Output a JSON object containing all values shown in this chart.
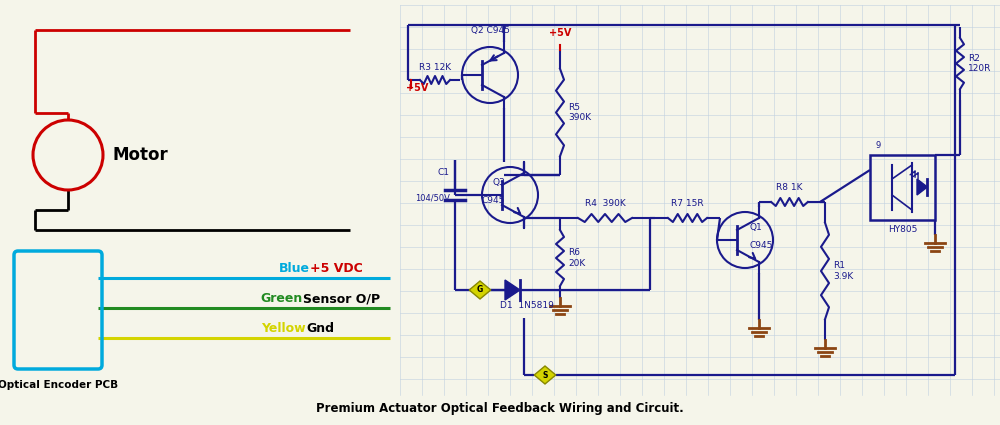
{
  "bg_color": "#f5f5ea",
  "circuit_color": "#1a1a8c",
  "red_color": "#cc0000",
  "black_color": "#000000",
  "green_color": "#228B22",
  "yellow_color": "#d4d400",
  "blue_color": "#00aadd",
  "ground_color": "#8B4513",
  "title": "Premium Actuator Optical Feedback Wiring and Circuit.",
  "motor_label": "Motor",
  "encoder_label": "Optical Encoder PCB",
  "blue_wire_label": "Blue",
  "blue_wire_desc": "+5 VDC",
  "green_wire_label": "Green",
  "green_wire_desc": "Sensor O/P",
  "yellow_wire_label": "Yellow",
  "yellow_wire_desc": "Gnd",
  "grid_color": "#c0d0e0",
  "figw": 10.0,
  "figh": 4.25,
  "dpi": 100
}
